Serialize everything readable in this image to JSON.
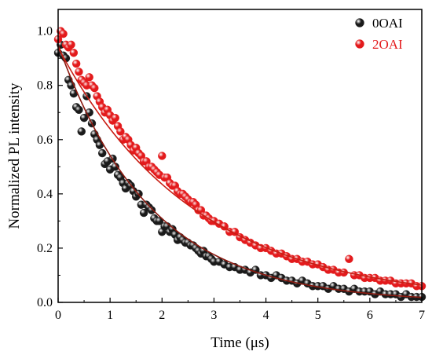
{
  "chart_data": {
    "type": "scatter",
    "xlabel": "Time (μs)",
    "ylabel": "Normalized PL intensity",
    "xlim": [
      0,
      7
    ],
    "ylim": [
      0,
      1.08
    ],
    "x_ticks": [
      "0",
      "1",
      "2",
      "3",
      "4",
      "5",
      "6",
      "7"
    ],
    "y_ticks": [
      "0.0",
      "0.2",
      "0.4",
      "0.6",
      "0.8",
      "1.0"
    ],
    "legend_position": "top-right",
    "grid": false,
    "series": [
      {
        "name": "0OAI",
        "color": "#1a1a1a",
        "fit_color": "#8b1a10",
        "fit": {
          "a": 0.95,
          "tau": 1.78
        },
        "points": [
          [
            0.0,
            0.92
          ],
          [
            0.05,
            0.95
          ],
          [
            0.1,
            0.91
          ],
          [
            0.15,
            0.9
          ],
          [
            0.2,
            0.82
          ],
          [
            0.25,
            0.8
          ],
          [
            0.3,
            0.77
          ],
          [
            0.35,
            0.72
          ],
          [
            0.4,
            0.71
          ],
          [
            0.45,
            0.63
          ],
          [
            0.5,
            0.68
          ],
          [
            0.55,
            0.76
          ],
          [
            0.6,
            0.7
          ],
          [
            0.65,
            0.66
          ],
          [
            0.7,
            0.62
          ],
          [
            0.75,
            0.6
          ],
          [
            0.8,
            0.58
          ],
          [
            0.85,
            0.55
          ],
          [
            0.9,
            0.51
          ],
          [
            0.95,
            0.52
          ],
          [
            1.0,
            0.49
          ],
          [
            1.05,
            0.53
          ],
          [
            1.1,
            0.5
          ],
          [
            1.15,
            0.47
          ],
          [
            1.2,
            0.46
          ],
          [
            1.25,
            0.44
          ],
          [
            1.3,
            0.42
          ],
          [
            1.35,
            0.44
          ],
          [
            1.4,
            0.43
          ],
          [
            1.45,
            0.41
          ],
          [
            1.5,
            0.39
          ],
          [
            1.55,
            0.4
          ],
          [
            1.6,
            0.36
          ],
          [
            1.65,
            0.33
          ],
          [
            1.7,
            0.36
          ],
          [
            1.75,
            0.35
          ],
          [
            1.8,
            0.34
          ],
          [
            1.85,
            0.31
          ],
          [
            1.9,
            0.3
          ],
          [
            1.95,
            0.3
          ],
          [
            2.0,
            0.26
          ],
          [
            2.05,
            0.28
          ],
          [
            2.1,
            0.28
          ],
          [
            2.15,
            0.26
          ],
          [
            2.2,
            0.27
          ],
          [
            2.25,
            0.25
          ],
          [
            2.3,
            0.23
          ],
          [
            2.35,
            0.24
          ],
          [
            2.4,
            0.23
          ],
          [
            2.45,
            0.22
          ],
          [
            2.5,
            0.22
          ],
          [
            2.55,
            0.21
          ],
          [
            2.6,
            0.21
          ],
          [
            2.65,
            0.2
          ],
          [
            2.7,
            0.19
          ],
          [
            2.75,
            0.18
          ],
          [
            2.8,
            0.19
          ],
          [
            2.85,
            0.17
          ],
          [
            2.9,
            0.17
          ],
          [
            2.95,
            0.16
          ],
          [
            3.0,
            0.15
          ],
          [
            3.1,
            0.15
          ],
          [
            3.2,
            0.14
          ],
          [
            3.3,
            0.13
          ],
          [
            3.4,
            0.13
          ],
          [
            3.5,
            0.12
          ],
          [
            3.6,
            0.12
          ],
          [
            3.7,
            0.11
          ],
          [
            3.8,
            0.12
          ],
          [
            3.9,
            0.1
          ],
          [
            4.0,
            0.1
          ],
          [
            4.1,
            0.09
          ],
          [
            4.2,
            0.1
          ],
          [
            4.3,
            0.09
          ],
          [
            4.4,
            0.08
          ],
          [
            4.5,
            0.08
          ],
          [
            4.6,
            0.07
          ],
          [
            4.7,
            0.08
          ],
          [
            4.8,
            0.07
          ],
          [
            4.9,
            0.06
          ],
          [
            5.0,
            0.06
          ],
          [
            5.1,
            0.06
          ],
          [
            5.2,
            0.05
          ],
          [
            5.3,
            0.06
          ],
          [
            5.4,
            0.05
          ],
          [
            5.5,
            0.05
          ],
          [
            5.6,
            0.04
          ],
          [
            5.7,
            0.05
          ],
          [
            5.8,
            0.04
          ],
          [
            5.9,
            0.04
          ],
          [
            6.0,
            0.04
          ],
          [
            6.1,
            0.03
          ],
          [
            6.2,
            0.04
          ],
          [
            6.3,
            0.03
          ],
          [
            6.4,
            0.03
          ],
          [
            6.5,
            0.03
          ],
          [
            6.6,
            0.02
          ],
          [
            6.7,
            0.03
          ],
          [
            6.8,
            0.02
          ],
          [
            6.9,
            0.02
          ],
          [
            7.0,
            0.02
          ]
        ]
      },
      {
        "name": "2OAI",
        "color": "#e31a1c",
        "fit_color": "#c81e14",
        "fit": {
          "a": 0.94,
          "tau": 2.6
        },
        "points": [
          [
            0.0,
            0.97
          ],
          [
            0.05,
            1.0
          ],
          [
            0.1,
            0.99
          ],
          [
            0.15,
            0.95
          ],
          [
            0.2,
            0.94
          ],
          [
            0.25,
            0.95
          ],
          [
            0.3,
            0.92
          ],
          [
            0.35,
            0.88
          ],
          [
            0.4,
            0.85
          ],
          [
            0.45,
            0.82
          ],
          [
            0.5,
            0.81
          ],
          [
            0.55,
            0.8
          ],
          [
            0.6,
            0.83
          ],
          [
            0.65,
            0.8
          ],
          [
            0.7,
            0.79
          ],
          [
            0.75,
            0.76
          ],
          [
            0.8,
            0.74
          ],
          [
            0.85,
            0.72
          ],
          [
            0.9,
            0.7
          ],
          [
            0.95,
            0.71
          ],
          [
            1.0,
            0.69
          ],
          [
            1.05,
            0.67
          ],
          [
            1.1,
            0.68
          ],
          [
            1.15,
            0.65
          ],
          [
            1.2,
            0.63
          ],
          [
            1.25,
            0.6
          ],
          [
            1.3,
            0.61
          ],
          [
            1.35,
            0.6
          ],
          [
            1.4,
            0.58
          ],
          [
            1.45,
            0.56
          ],
          [
            1.5,
            0.57
          ],
          [
            1.55,
            0.55
          ],
          [
            1.6,
            0.54
          ],
          [
            1.65,
            0.52
          ],
          [
            1.7,
            0.52
          ],
          [
            1.75,
            0.5
          ],
          [
            1.8,
            0.5
          ],
          [
            1.85,
            0.49
          ],
          [
            1.9,
            0.48
          ],
          [
            1.95,
            0.47
          ],
          [
            2.0,
            0.54
          ],
          [
            2.05,
            0.46
          ],
          [
            2.1,
            0.46
          ],
          [
            2.15,
            0.44
          ],
          [
            2.2,
            0.43
          ],
          [
            2.25,
            0.43
          ],
          [
            2.3,
            0.41
          ],
          [
            2.35,
            0.4
          ],
          [
            2.4,
            0.4
          ],
          [
            2.45,
            0.39
          ],
          [
            2.5,
            0.38
          ],
          [
            2.55,
            0.37
          ],
          [
            2.6,
            0.37
          ],
          [
            2.65,
            0.36
          ],
          [
            2.7,
            0.34
          ],
          [
            2.75,
            0.34
          ],
          [
            2.8,
            0.32
          ],
          [
            2.85,
            0.32
          ],
          [
            2.9,
            0.31
          ],
          [
            2.95,
            0.3
          ],
          [
            3.0,
            0.3
          ],
          [
            3.1,
            0.29
          ],
          [
            3.2,
            0.28
          ],
          [
            3.3,
            0.26
          ],
          [
            3.4,
            0.26
          ],
          [
            3.5,
            0.24
          ],
          [
            3.6,
            0.23
          ],
          [
            3.7,
            0.22
          ],
          [
            3.8,
            0.21
          ],
          [
            3.9,
            0.2
          ],
          [
            4.0,
            0.2
          ],
          [
            4.1,
            0.19
          ],
          [
            4.2,
            0.18
          ],
          [
            4.3,
            0.18
          ],
          [
            4.4,
            0.17
          ],
          [
            4.5,
            0.16
          ],
          [
            4.6,
            0.16
          ],
          [
            4.7,
            0.15
          ],
          [
            4.8,
            0.15
          ],
          [
            4.9,
            0.14
          ],
          [
            5.0,
            0.14
          ],
          [
            5.1,
            0.13
          ],
          [
            5.2,
            0.12
          ],
          [
            5.3,
            0.12
          ],
          [
            5.4,
            0.11
          ],
          [
            5.5,
            0.11
          ],
          [
            5.6,
            0.16
          ],
          [
            5.7,
            0.1
          ],
          [
            5.8,
            0.1
          ],
          [
            5.9,
            0.09
          ],
          [
            6.0,
            0.09
          ],
          [
            6.1,
            0.09
          ],
          [
            6.2,
            0.08
          ],
          [
            6.3,
            0.08
          ],
          [
            6.4,
            0.08
          ],
          [
            6.5,
            0.07
          ],
          [
            6.6,
            0.07
          ],
          [
            6.7,
            0.07
          ],
          [
            6.8,
            0.07
          ],
          [
            6.9,
            0.06
          ],
          [
            7.0,
            0.06
          ]
        ]
      }
    ]
  }
}
